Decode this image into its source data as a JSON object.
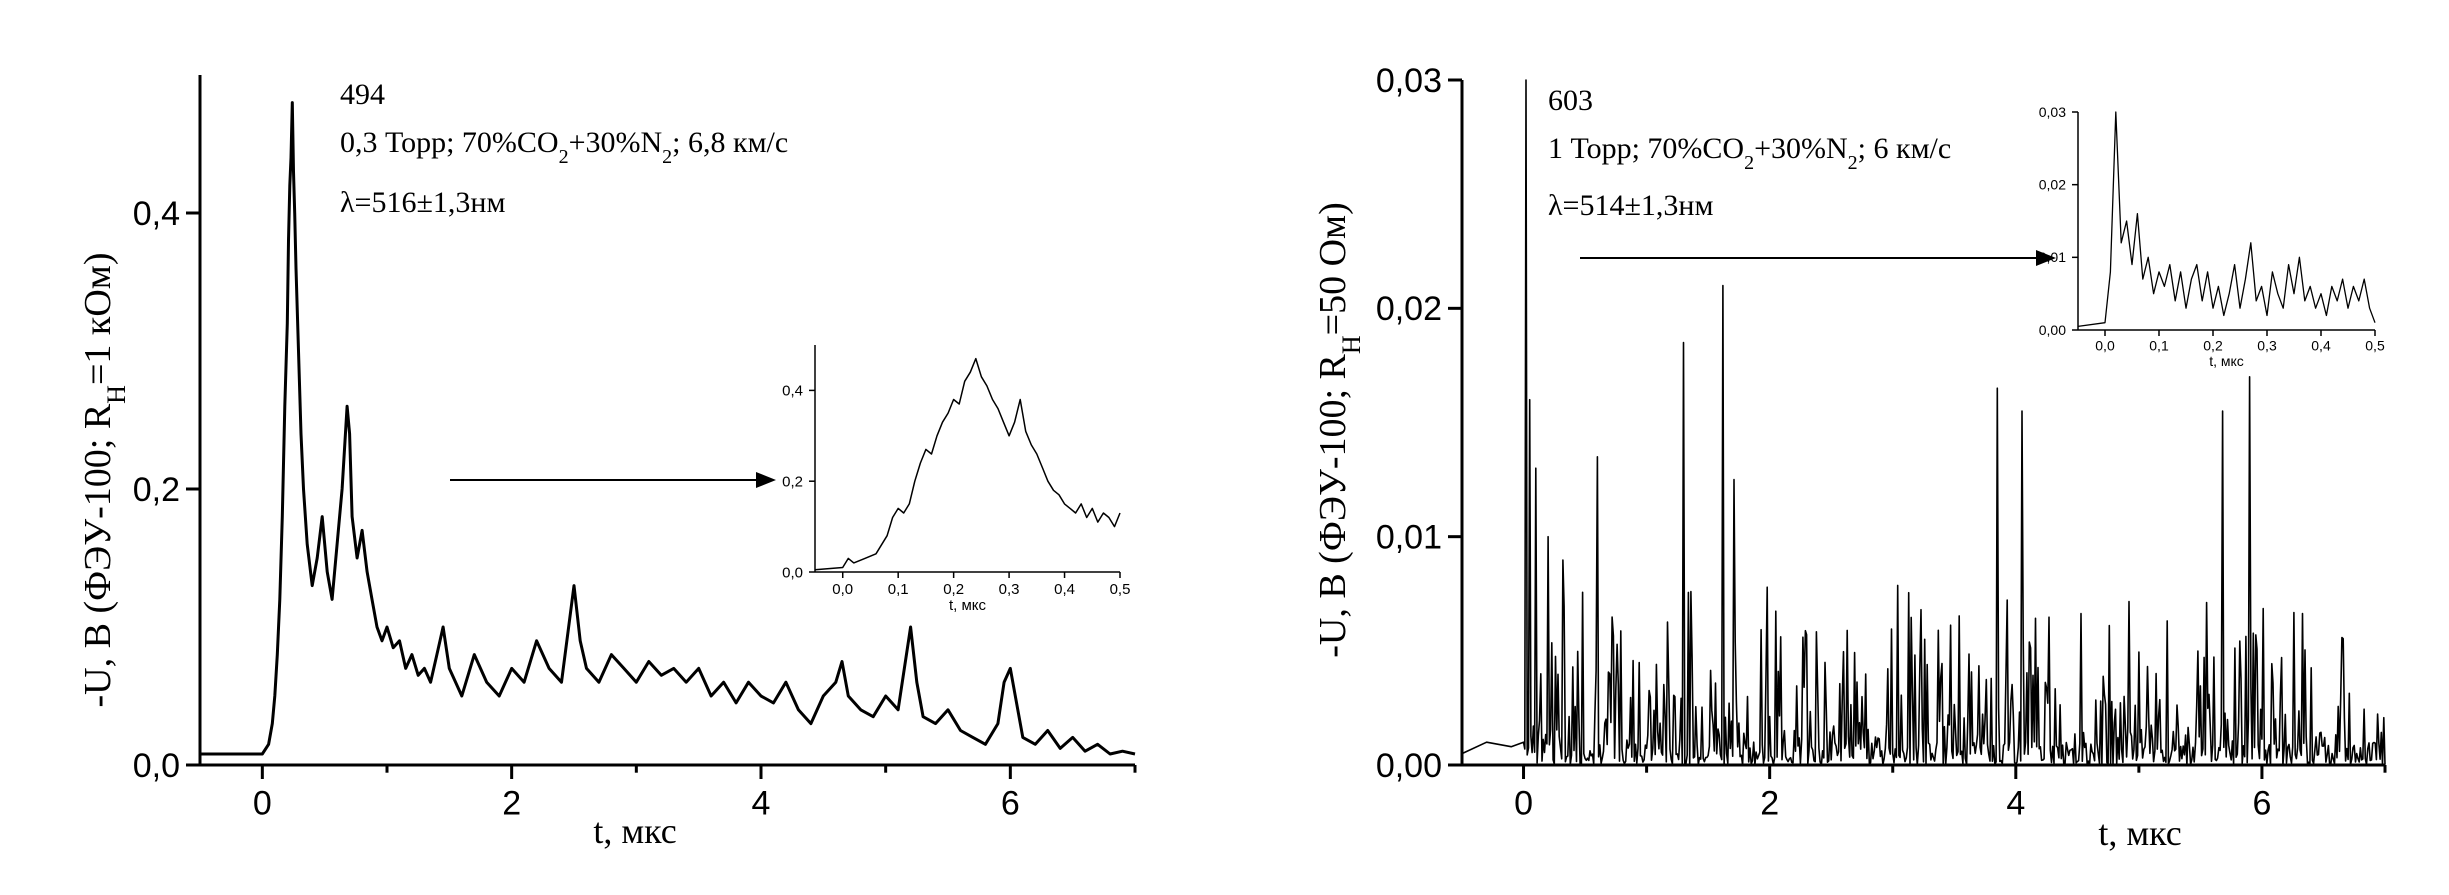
{
  "chart_data": [
    {
      "type": "line",
      "id": "left",
      "xlabel": "t, мкс",
      "ylabel_main": "-U, В (ФЭУ-100; R",
      "ylabel_sub": "Н",
      "ylabel_tail": "=1 кОм)",
      "xlim": [
        -0.5,
        7
      ],
      "ylim": [
        0,
        0.5
      ],
      "xticks": [
        0,
        2,
        4,
        6
      ],
      "xtick_labels": [
        "0",
        "2",
        "4",
        "6"
      ],
      "yticks": [
        0,
        0.2,
        0.4
      ],
      "ytick_labels": [
        "0,0",
        "0,2",
        "0,4"
      ],
      "annotation_id": "494",
      "annotation_cond_a": "0,3 Торр; 70%CO",
      "annotation_sub1": "2",
      "annotation_cond_b": "+30%N",
      "annotation_sub2": "2",
      "annotation_cond_c": "; 6,8 км/с",
      "annotation_lambda": "λ=516±1,3нм",
      "series": [
        {
          "x": [
            -0.5,
            -0.3,
            -0.1,
            0.0,
            0.05,
            0.08,
            0.1,
            0.12,
            0.14,
            0.16,
            0.18,
            0.2,
            0.21,
            0.22,
            0.23,
            0.24,
            0.25,
            0.26,
            0.27,
            0.29,
            0.31,
            0.33,
            0.36,
            0.4,
            0.44,
            0.48,
            0.52,
            0.56,
            0.6,
            0.64,
            0.68,
            0.7,
            0.72,
            0.76,
            0.8,
            0.84,
            0.88,
            0.92,
            0.96,
            1.0,
            1.05,
            1.1,
            1.15,
            1.2,
            1.25,
            1.3,
            1.35,
            1.4,
            1.45,
            1.5,
            1.55,
            1.6,
            1.7,
            1.8,
            1.9,
            2.0,
            2.1,
            2.2,
            2.3,
            2.4,
            2.5,
            2.55,
            2.6,
            2.7,
            2.8,
            2.9,
            3.0,
            3.1,
            3.2,
            3.3,
            3.4,
            3.5,
            3.6,
            3.7,
            3.8,
            3.9,
            4.0,
            4.1,
            4.2,
            4.3,
            4.4,
            4.5,
            4.6,
            4.65,
            4.7,
            4.8,
            4.9,
            5.0,
            5.1,
            5.2,
            5.25,
            5.3,
            5.4,
            5.5,
            5.6,
            5.7,
            5.8,
            5.9,
            5.95,
            6.0,
            6.1,
            6.2,
            6.3,
            6.4,
            6.5,
            6.6,
            6.7,
            6.8,
            6.9,
            7.0
          ],
          "y": [
            0.008,
            0.008,
            0.008,
            0.008,
            0.015,
            0.03,
            0.05,
            0.08,
            0.12,
            0.18,
            0.26,
            0.32,
            0.38,
            0.42,
            0.44,
            0.48,
            0.43,
            0.4,
            0.36,
            0.3,
            0.24,
            0.2,
            0.16,
            0.13,
            0.15,
            0.18,
            0.14,
            0.12,
            0.16,
            0.2,
            0.26,
            0.24,
            0.18,
            0.15,
            0.17,
            0.14,
            0.12,
            0.1,
            0.09,
            0.1,
            0.085,
            0.09,
            0.07,
            0.08,
            0.065,
            0.07,
            0.06,
            0.08,
            0.1,
            0.07,
            0.06,
            0.05,
            0.08,
            0.06,
            0.05,
            0.07,
            0.06,
            0.09,
            0.07,
            0.06,
            0.13,
            0.09,
            0.07,
            0.06,
            0.08,
            0.07,
            0.06,
            0.075,
            0.065,
            0.07,
            0.06,
            0.07,
            0.05,
            0.06,
            0.045,
            0.06,
            0.05,
            0.045,
            0.06,
            0.04,
            0.03,
            0.05,
            0.06,
            0.075,
            0.05,
            0.04,
            0.035,
            0.05,
            0.04,
            0.1,
            0.06,
            0.035,
            0.03,
            0.04,
            0.025,
            0.02,
            0.015,
            0.03,
            0.06,
            0.07,
            0.02,
            0.015,
            0.025,
            0.012,
            0.02,
            0.01,
            0.015,
            0.008,
            0.01,
            0.008
          ]
        }
      ],
      "inset": {
        "xlim": [
          -0.05,
          0.5
        ],
        "ylim": [
          0,
          0.5
        ],
        "xticks": [
          0,
          0.1,
          0.2,
          0.3,
          0.4,
          0.5
        ],
        "xtick_labels": [
          "0,0",
          "0,1",
          "0,2",
          "0,3",
          "0,4",
          "0,5"
        ],
        "yticks": [
          0,
          0.2,
          0.4
        ],
        "ytick_labels": [
          "0,0",
          "0,2",
          "0,4"
        ],
        "xlabel": "t, мкс",
        "x": [
          -0.05,
          0.0,
          0.01,
          0.02,
          0.04,
          0.06,
          0.07,
          0.08,
          0.09,
          0.1,
          0.11,
          0.12,
          0.13,
          0.14,
          0.15,
          0.16,
          0.17,
          0.18,
          0.19,
          0.2,
          0.21,
          0.22,
          0.23,
          0.24,
          0.25,
          0.26,
          0.27,
          0.28,
          0.29,
          0.3,
          0.31,
          0.32,
          0.33,
          0.34,
          0.35,
          0.36,
          0.37,
          0.38,
          0.39,
          0.4,
          0.41,
          0.42,
          0.43,
          0.44,
          0.45,
          0.46,
          0.47,
          0.48,
          0.49,
          0.5
        ],
        "y": [
          0.005,
          0.01,
          0.03,
          0.02,
          0.03,
          0.04,
          0.06,
          0.08,
          0.12,
          0.14,
          0.13,
          0.15,
          0.2,
          0.24,
          0.27,
          0.26,
          0.3,
          0.33,
          0.35,
          0.38,
          0.37,
          0.42,
          0.44,
          0.47,
          0.43,
          0.41,
          0.38,
          0.36,
          0.33,
          0.3,
          0.33,
          0.38,
          0.31,
          0.28,
          0.26,
          0.23,
          0.2,
          0.18,
          0.17,
          0.15,
          0.14,
          0.13,
          0.15,
          0.12,
          0.14,
          0.11,
          0.13,
          0.12,
          0.1,
          0.13
        ]
      }
    },
    {
      "type": "line",
      "id": "right",
      "xlabel": "t, мкс",
      "ylabel_main": "-U, В (ФЭУ-100; R",
      "ylabel_sub": "Н",
      "ylabel_tail": "=50 Ом)",
      "xlim": [
        -0.5,
        7
      ],
      "ylim": [
        0,
        0.03
      ],
      "xticks": [
        0,
        2,
        4,
        6
      ],
      "xtick_labels": [
        "0",
        "2",
        "4",
        "6"
      ],
      "yticks": [
        0,
        0.01,
        0.02,
        0.03
      ],
      "ytick_labels": [
        "0,00",
        "0,01",
        "0,02",
        "0,03"
      ],
      "annotation_id": "603",
      "annotation_cond_a": "1 Торр; 70%CO",
      "annotation_sub1": "2",
      "annotation_cond_b": "+30%N",
      "annotation_sub2": "2",
      "annotation_cond_c": "; 6 км/с",
      "annotation_lambda": "λ=514±1,3нм",
      "noise": {
        "baseline_x": [
          -0.5,
          -0.3,
          -0.1,
          0.0
        ],
        "baseline_y": [
          0.0005,
          0.001,
          0.0008,
          0.001
        ],
        "spikes_x": [
          0.02,
          0.05,
          0.1,
          0.2,
          0.6,
          1.3,
          1.62,
          1.71,
          3.85,
          4.05,
          5.68,
          5.9
        ],
        "spikes_y": [
          0.03,
          0.016,
          0.013,
          0.01,
          0.0135,
          0.0185,
          0.021,
          0.0125,
          0.0165,
          0.0155,
          0.0155,
          0.017
        ],
        "noise_amp": 0.009
      },
      "inset": {
        "xlim": [
          -0.05,
          0.5
        ],
        "ylim": [
          0,
          0.03
        ],
        "xticks": [
          0,
          0.1,
          0.2,
          0.3,
          0.4,
          0.5
        ],
        "xtick_labels": [
          "0,0",
          "0,1",
          "0,2",
          "0,3",
          "0,4",
          "0,5"
        ],
        "yticks": [
          0,
          0.01,
          0.02,
          0.03
        ],
        "ytick_labels": [
          "0,00",
          "0,01",
          "0,02",
          "0,03"
        ],
        "xlabel": "t, мкс",
        "x": [
          -0.05,
          0.0,
          0.01,
          0.02,
          0.03,
          0.04,
          0.05,
          0.06,
          0.07,
          0.08,
          0.09,
          0.1,
          0.11,
          0.12,
          0.13,
          0.14,
          0.15,
          0.16,
          0.17,
          0.18,
          0.19,
          0.2,
          0.21,
          0.22,
          0.23,
          0.24,
          0.25,
          0.26,
          0.27,
          0.28,
          0.29,
          0.3,
          0.31,
          0.32,
          0.33,
          0.34,
          0.35,
          0.36,
          0.37,
          0.38,
          0.39,
          0.4,
          0.41,
          0.42,
          0.43,
          0.44,
          0.45,
          0.46,
          0.47,
          0.48,
          0.49,
          0.5
        ],
        "y": [
          0.0005,
          0.001,
          0.008,
          0.03,
          0.012,
          0.015,
          0.009,
          0.016,
          0.007,
          0.01,
          0.005,
          0.008,
          0.006,
          0.009,
          0.004,
          0.008,
          0.003,
          0.007,
          0.009,
          0.004,
          0.008,
          0.003,
          0.006,
          0.002,
          0.005,
          0.009,
          0.003,
          0.007,
          0.012,
          0.004,
          0.006,
          0.002,
          0.008,
          0.005,
          0.003,
          0.009,
          0.005,
          0.01,
          0.004,
          0.006,
          0.003,
          0.005,
          0.002,
          0.006,
          0.004,
          0.007,
          0.003,
          0.006,
          0.004,
          0.007,
          0.003,
          0.001
        ]
      }
    }
  ]
}
